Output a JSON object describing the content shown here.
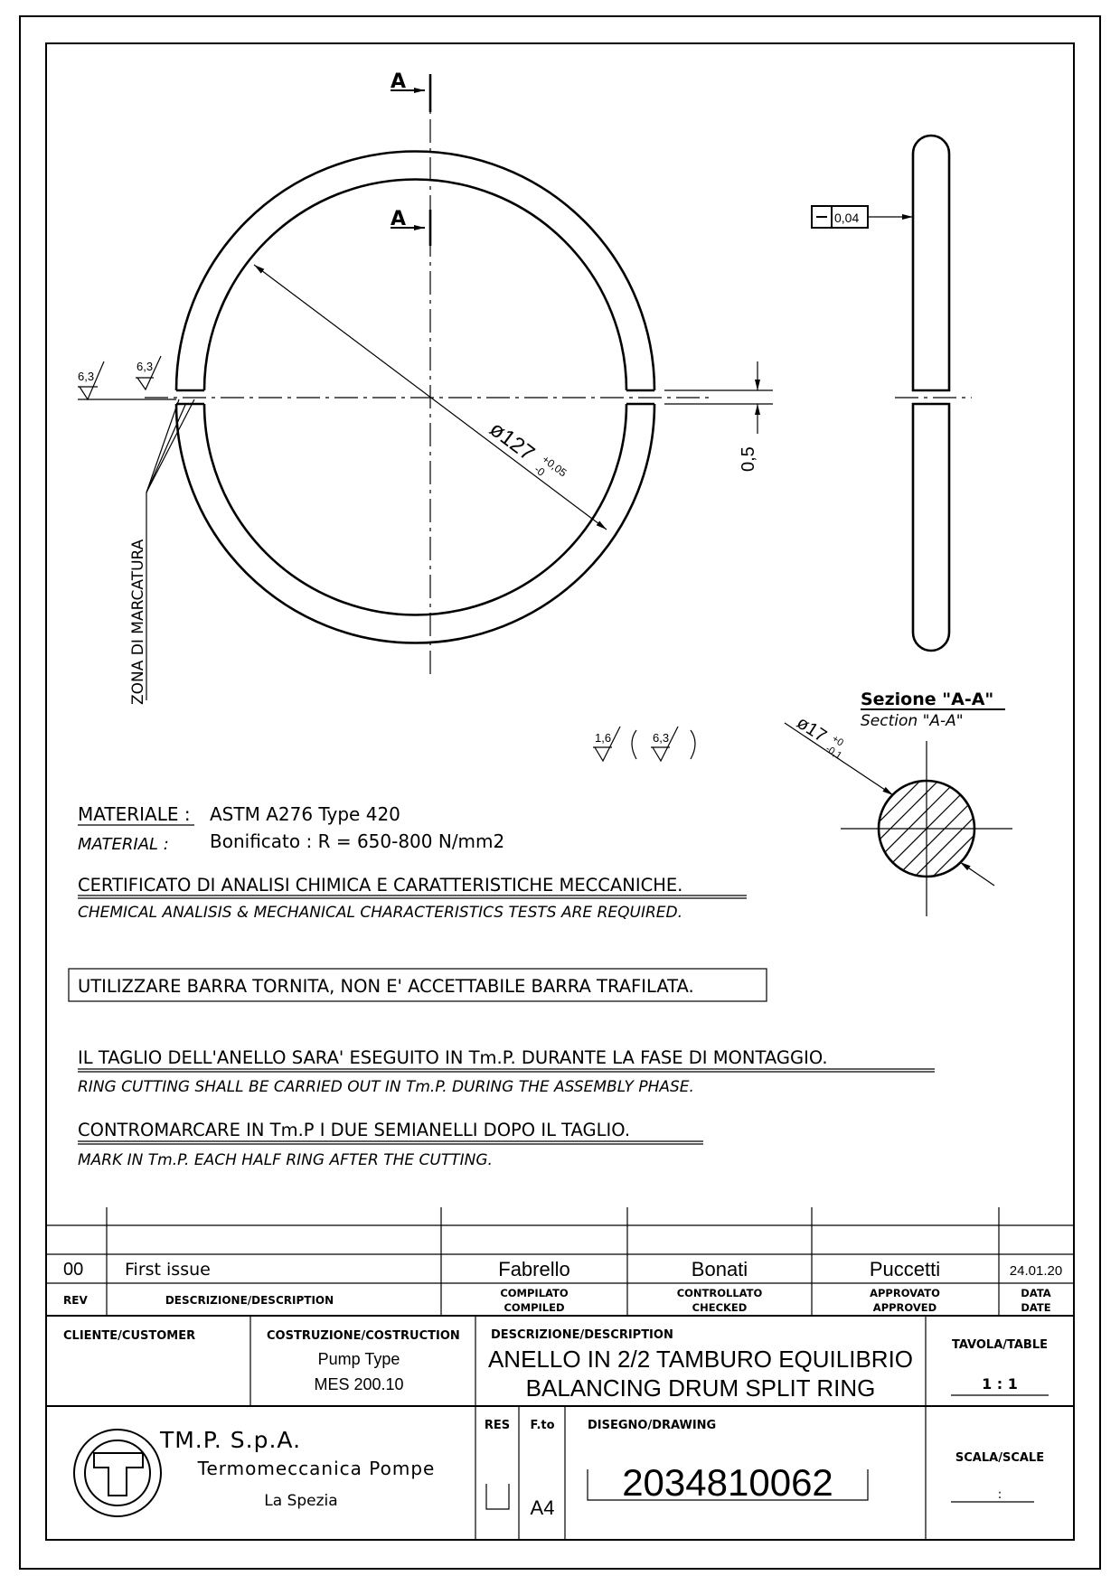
{
  "drawing": {
    "section_letter": "A",
    "diameter_label": "ø127",
    "diameter_tol_upper": "+0,05",
    "diameter_tol_lower": "-0",
    "gap_label": "0,5",
    "flatness_value": "0,04",
    "roughness_1": "6,3",
    "roughness_2": "6,3",
    "roughness_general_1": "1,6",
    "roughness_general_2": "6,3",
    "marking_zone": "ZONA DI MARCATURA",
    "section_title": "Sezione \"A-A\"",
    "section_title_en": "Section \"A-A\"",
    "section_diameter": "ø17",
    "section_tol_upper": "+0",
    "section_tol_lower": "-0,1"
  },
  "notes": {
    "material_label": "MATERIALE :",
    "material_label_en": "MATERIAL :",
    "material_value": "ASTM A276 Type 420",
    "material_treatment": "Bonificato : R = 650-800 N/mm2",
    "certificate": "CERTIFICATO DI ANALISI CHIMICA E CARATTERISTICHE MECCANICHE.",
    "certificate_en": "CHEMICAL ANALISIS & MECHANICAL CHARACTERISTICS TESTS ARE REQUIRED.",
    "bar_note": "UTILIZZARE BARRA TORNITA, NON E' ACCETTABILE BARRA TRAFILATA.",
    "cutting": "IL TAGLIO DELL'ANELLO SARA' ESEGUITO IN Tm.P. DURANTE LA FASE DI MONTAGGIO.",
    "cutting_en": "RING CUTTING SHALL BE CARRIED OUT IN Tm.P. DURING THE ASSEMBLY PHASE.",
    "marking": "CONTROMARCARE IN Tm.P I DUE SEMIANELLI DOPO IL TAGLIO.",
    "marking_en": "MARK IN Tm.P. EACH HALF RING AFTER THE CUTTING."
  },
  "revision": {
    "rev": "00",
    "description": "First issue",
    "compiled": "Fabrello",
    "checked": "Bonati",
    "approved": "Puccetti",
    "date": "24.01.20",
    "h_rev": "REV",
    "h_desc": "DESCRIZIONE/DESCRIPTION",
    "h_comp1": "COMPILATO",
    "h_comp2": "COMPILED",
    "h_check1": "CONTROLLATO",
    "h_check2": "CHECKED",
    "h_appr1": "APPROVATO",
    "h_appr2": "APPROVED",
    "h_date1": "DATA",
    "h_date2": "DATE"
  },
  "title_block": {
    "customer_label": "CLIENTE/CUSTOMER",
    "construction_label": "COSTRUZIONE/COSTRUCTION",
    "construction_1": "Pump Type",
    "construction_2": "MES 200.10",
    "description_label": "DESCRIZIONE/DESCRIPTION",
    "description_it": "ANELLO IN 2/2 TAMBURO EQUILIBRIO",
    "description_en": "BALANCING DRUM SPLIT RING",
    "table_label": "TAVOLA/TABLE",
    "table_value": "1 : 1",
    "company": "TM.P. S.p.A.",
    "company_full": "Termomeccanica Pompe",
    "company_city": "La Spezia",
    "res_label": "RES",
    "format_label": "F.to",
    "format_value": "A4",
    "drawing_label": "DISEGNO/DRAWING",
    "drawing_number": "2034810062",
    "scale_label": "SCALA/SCALE",
    "scale_value": ":"
  }
}
